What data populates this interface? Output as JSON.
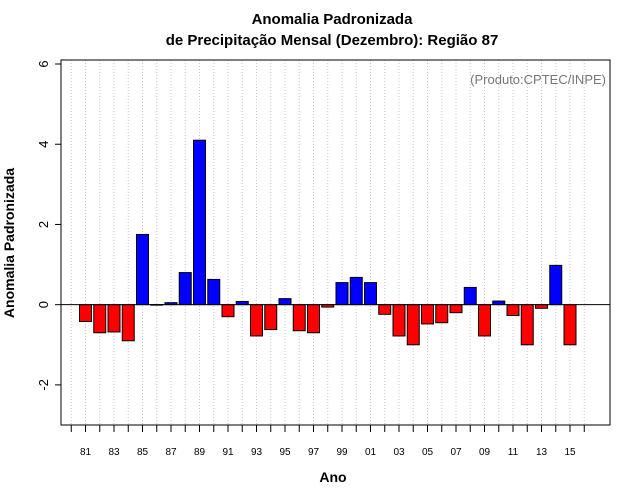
{
  "chart_data": {
    "type": "bar",
    "title_line1": "Anomalia Padronizada",
    "title_line2": "de Precipitação Mensal (Dezembro): Região 87",
    "xlabel": "Ano",
    "ylabel": "Anomalia Padronizada",
    "annotation": "(Produto:CPTEC/INPE)",
    "ylim": [
      -3.0,
      6.1
    ],
    "yticks": [
      -2,
      0,
      2,
      4,
      6
    ],
    "grid": "vertical dotted",
    "categories": [
      "1981",
      "1982",
      "1983",
      "1984",
      "1985",
      "1986",
      "1987",
      "1988",
      "1989",
      "1990",
      "1991",
      "1992",
      "1993",
      "1994",
      "1995",
      "1996",
      "1997",
      "1998",
      "1999",
      "2000",
      "2001",
      "2002",
      "2003",
      "2004",
      "2005",
      "2006",
      "2007",
      "2008",
      "2009",
      "2010",
      "2011",
      "2012",
      "2013",
      "2014",
      "2015"
    ],
    "xtick_labels": [
      {
        "year": "1981",
        "label": "81"
      },
      {
        "year": "1983",
        "label": "83"
      },
      {
        "year": "1985",
        "label": "85"
      },
      {
        "year": "1987",
        "label": "87"
      },
      {
        "year": "1989",
        "label": "89"
      },
      {
        "year": "1991",
        "label": "91"
      },
      {
        "year": "1993",
        "label": "93"
      },
      {
        "year": "1995",
        "label": "95"
      },
      {
        "year": "1997",
        "label": "97"
      },
      {
        "year": "1999",
        "label": "99"
      },
      {
        "year": "2001",
        "label": "01"
      },
      {
        "year": "2003",
        "label": "03"
      },
      {
        "year": "2005",
        "label": "05"
      },
      {
        "year": "2007",
        "label": "07"
      },
      {
        "year": "2009",
        "label": "09"
      },
      {
        "year": "2011",
        "label": "11"
      },
      {
        "year": "2013",
        "label": "13"
      },
      {
        "year": "2015",
        "label": "15"
      }
    ],
    "values": [
      -0.42,
      -0.7,
      -0.68,
      -0.9,
      1.75,
      0.0,
      0.05,
      0.8,
      4.1,
      0.63,
      -0.3,
      0.08,
      -0.78,
      -0.62,
      0.15,
      -0.65,
      -0.7,
      -0.06,
      0.55,
      0.68,
      0.55,
      -0.24,
      -0.78,
      -1.0,
      -0.48,
      -0.45,
      -0.2,
      0.43,
      -0.78,
      0.09,
      -0.27,
      -1.0,
      -0.09,
      0.98,
      -1.0
    ],
    "positive_color": "#0000ff",
    "negative_color": "#ff0000"
  }
}
